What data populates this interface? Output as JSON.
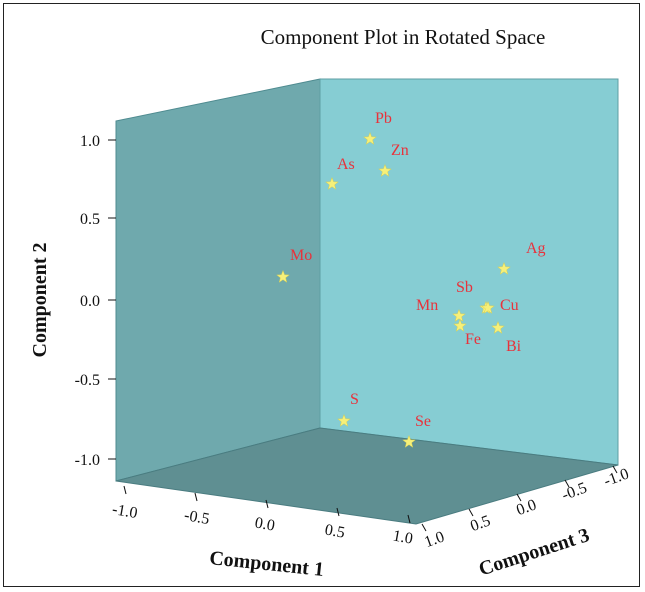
{
  "chart_data": {
    "type": "scatter",
    "title": "Component Plot in Rotated Space",
    "axes": {
      "x": {
        "label": "Component 1",
        "ticks": [
          "-1.0",
          "-0.5",
          "0.0",
          "0.5",
          "1.0"
        ]
      },
      "y": {
        "label": "Component 2",
        "ticks": [
          "1.0",
          "0.5",
          "0.0",
          "-0.5",
          "-1.0"
        ]
      },
      "z": {
        "label": "Component 3",
        "ticks": [
          "1.0",
          "0.5",
          "0.0",
          "-0.5",
          "-1.0"
        ]
      }
    },
    "points": [
      {
        "label": "Pb",
        "y": 1.0
      },
      {
        "label": "Zn",
        "y": 0.8
      },
      {
        "label": "As",
        "y": 0.72
      },
      {
        "label": "Mo",
        "y": 0.15
      },
      {
        "label": "Ag",
        "y": 0.2
      },
      {
        "label": "Sb",
        "y": -0.05
      },
      {
        "label": "Mn",
        "y": -0.1
      },
      {
        "label": "Cu",
        "y": -0.05
      },
      {
        "label": "Fe",
        "y": -0.18
      },
      {
        "label": "Bi",
        "y": -0.18
      },
      {
        "label": "S",
        "y": -0.77
      },
      {
        "label": "Se",
        "y": -0.9
      }
    ],
    "colors": {
      "back_wall": "#86cdd3",
      "side_wall": "#6fa9ad",
      "floor": "#5f8f92",
      "marker": "#f6f07a",
      "label": "#e8323b"
    },
    "marker": "star",
    "grid": false
  }
}
